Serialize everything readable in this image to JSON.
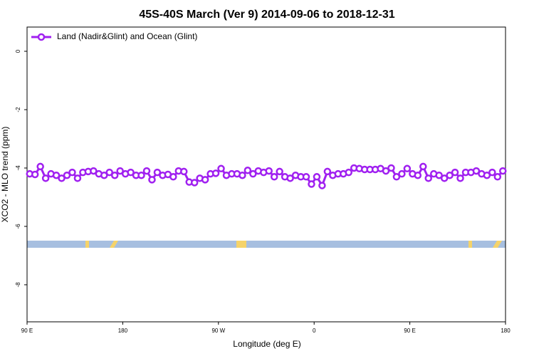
{
  "chart_data": {
    "type": "line",
    "title": "45S-40S March (Ver 9)   2014-09-06 to 2018-12-31",
    "x_label": "Longitude (deg E)",
    "y_label": "XCO2 - MLO trend (ppm)",
    "x": [
      92.5,
      97.5,
      102.5,
      107.5,
      112.5,
      117.5,
      122.5,
      127.5,
      132.5,
      137.5,
      142.5,
      147.5,
      152.5,
      157.5,
      162.5,
      167.5,
      172.5,
      177.5,
      182.5,
      187.5,
      192.5,
      197.5,
      202.5,
      207.5,
      212.5,
      217.5,
      222.5,
      227.5,
      232.5,
      237.5,
      242.5,
      247.5,
      252.5,
      257.5,
      262.5,
      267.5,
      272.5,
      277.5,
      282.5,
      287.5,
      292.5,
      297.5,
      302.5,
      307.5,
      312.5,
      317.5,
      322.5,
      327.5,
      332.5,
      337.5,
      342.5,
      347.5,
      352.5,
      357.5,
      362.5,
      367.5,
      372.5,
      377.5,
      382.5,
      387.5,
      392.5,
      397.5,
      402.5,
      407.5,
      412.5,
      417.5,
      422.5,
      427.5,
      432.5,
      437.5,
      442.5,
      447.5,
      452.5,
      457.5,
      462.5,
      467.5,
      472.5,
      477.5,
      482.5,
      487.5,
      492.5,
      497.5,
      502.5,
      507.5,
      512.5,
      517.5,
      522.5,
      527.5,
      532.5,
      537.5
    ],
    "series": [
      {
        "name": "Land (Nadir&Glint) and Ocean (Glint)",
        "color": "#a020f0",
        "values": [
          -4.2,
          -4.22,
          -3.95,
          -4.35,
          -4.2,
          -4.25,
          -4.35,
          -4.25,
          -4.15,
          -4.35,
          -4.15,
          -4.12,
          -4.1,
          -4.2,
          -4.25,
          -4.15,
          -4.25,
          -4.1,
          -4.2,
          -4.15,
          -4.25,
          -4.25,
          -4.1,
          -4.4,
          -4.15,
          -4.25,
          -4.22,
          -4.3,
          -4.1,
          -4.12,
          -4.48,
          -4.5,
          -4.35,
          -4.4,
          -4.2,
          -4.18,
          -4.02,
          -4.25,
          -4.2,
          -4.2,
          -4.25,
          -4.08,
          -4.2,
          -4.1,
          -4.15,
          -4.1,
          -4.3,
          -4.12,
          -4.3,
          -4.35,
          -4.25,
          -4.3,
          -4.3,
          -4.55,
          -4.3,
          -4.6,
          -4.12,
          -4.25,
          -4.2,
          -4.2,
          -4.15,
          -4.0,
          -4.02,
          -4.05,
          -4.05,
          -4.05,
          -4.02,
          -4.1,
          -4.0,
          -4.3,
          -4.2,
          -4.02,
          -4.2,
          -4.25,
          -3.95,
          -4.35,
          -4.2,
          -4.25,
          -4.35,
          -4.25,
          -4.15,
          -4.35,
          -4.15,
          -4.15,
          -4.1,
          -4.2,
          -4.25,
          -4.15,
          -4.3,
          -4.1
        ]
      }
    ],
    "xlim": [
      90,
      540
    ],
    "xticks": [
      {
        "value": 90,
        "label": "90 E"
      },
      {
        "value": 180,
        "label": "180"
      },
      {
        "value": 270,
        "label": "90 W"
      },
      {
        "value": 360,
        "label": "0"
      },
      {
        "value": 450,
        "label": "90 E"
      },
      {
        "value": 540,
        "label": "180"
      }
    ],
    "ylim": [
      -9.27,
      0.83
    ],
    "yticks": [
      0,
      -2,
      -4,
      -6,
      -8
    ],
    "legend": "top-left"
  }
}
